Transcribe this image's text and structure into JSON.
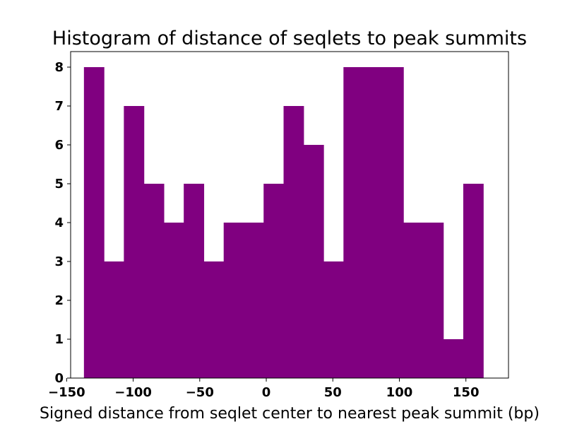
{
  "chart_data": {
    "type": "bar",
    "title": "Histogram of distance of seqlets to peak summits",
    "xlabel": "Signed distance from seqlet center to nearest peak summit (bp)",
    "ylabel": "",
    "bin_edges": [
      -137,
      -122,
      -107,
      -92,
      -77,
      -62,
      -47,
      -32,
      -17,
      -2,
      13,
      28,
      43,
      58,
      73,
      88,
      103,
      118,
      133,
      148,
      163
    ],
    "values": [
      8,
      3,
      7,
      5,
      4,
      5,
      3,
      4,
      4,
      5,
      7,
      6,
      3,
      8,
      8,
      8,
      4,
      4,
      1,
      5
    ],
    "xlim": [
      -147,
      182
    ],
    "ylim": [
      0,
      8.4
    ],
    "xticks": [
      -150,
      -100,
      -50,
      0,
      50,
      100,
      150
    ],
    "xtick_labels": [
      "−150",
      "−100",
      "−50",
      "0",
      "50",
      "100",
      "150"
    ],
    "yticks": [
      0,
      1,
      2,
      3,
      4,
      5,
      6,
      7,
      8
    ],
    "ytick_labels": [
      "0",
      "1",
      "2",
      "3",
      "4",
      "5",
      "6",
      "7",
      "8"
    ],
    "bar_color": "#800080",
    "grid": false
  }
}
